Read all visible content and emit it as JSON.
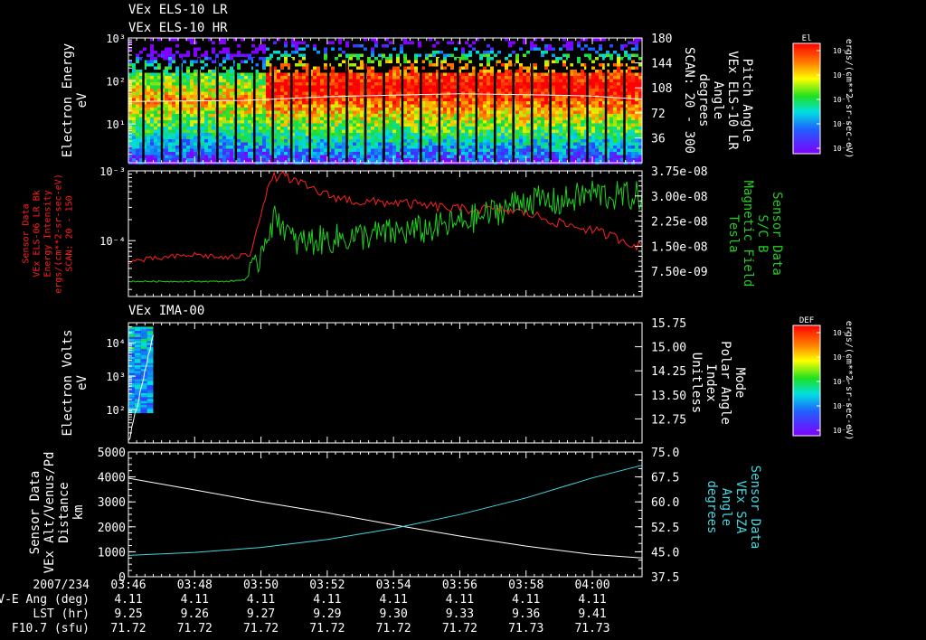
{
  "title_lines": [
    "VEx ELS-10 LR",
    "VEx ELS-10 HR"
  ],
  "panel3_title": "VEx IMA-00",
  "colors": {
    "red": "#ff2020",
    "green": "#20d020",
    "cyan": "#40d8e0",
    "white": "#ffffff"
  },
  "time_axis": {
    "start": "03:46",
    "end": "04:01:30",
    "ticks": [
      "03:46",
      "03:48",
      "03:50",
      "03:52",
      "03:54",
      "03:56",
      "03:58",
      "04:00"
    ]
  },
  "chart_data": [
    {
      "type": "heatmap",
      "name": "ELS spectrogram",
      "ylabel": [
        "Electron Energy",
        "eV"
      ],
      "y_scale": "log",
      "y_ticks": [
        {
          "v": 1,
          "label": "10¹"
        },
        {
          "v": 2,
          "label": "10²"
        },
        {
          "v": 3,
          "label": "10³"
        }
      ],
      "ylim_log": [
        0.1,
        3.0
      ],
      "right_ylabel": [
        "Pitch Angle",
        "VEx ELS-10 LR",
        "Angle",
        "degrees",
        "SCAN: 20 - 300"
      ],
      "right_ticks": [
        36,
        72,
        108,
        144,
        180
      ],
      "right_ylim": [
        0,
        180
      ],
      "colorbar": {
        "title": "El",
        "label": "ergs/(cm**2-sr-sec-eV)",
        "ticks": [
          "10⁻⁴",
          "10⁻⁵",
          "10⁻⁶",
          "10⁻⁷",
          "10⁻⁸"
        ]
      },
      "pitch_angle_trace": {
        "time": [
          "03:46",
          "03:49:30",
          "03:50:10",
          "03:52",
          "03:54",
          "03:56",
          "03:58",
          "04:00",
          "04:01:30"
        ],
        "deg": [
          88,
          90,
          92,
          96,
          98,
          100,
          98,
          95,
          92
        ]
      }
    },
    {
      "type": "line",
      "name": "Sensor Data",
      "left_ylabel": [
        "Sensor Data",
        "VEx ELS-06 LR Bk",
        "Energy Intensity",
        "ergs/(cm**2-sr-sec-eV)",
        "SCAN: 20 - 150"
      ],
      "left_ticks": [
        {
          "v": -4,
          "label": "10⁻⁴"
        },
        {
          "v": -3,
          "label": "10⁻³"
        }
      ],
      "left_ylim_log": [
        -4.8,
        -3.0
      ],
      "right_ylabel": [
        "Sensor Data",
        "S/C B",
        "Magnetic Field",
        "Tesla"
      ],
      "right_ticks": [
        "7.50e-09",
        "1.50e-08",
        "2.25e-08",
        "3.00e-08",
        "3.75e-08"
      ],
      "right_ylim": [
        0,
        3.75e-08
      ],
      "series": [
        {
          "name": "",
          "color": "#ff2020",
          "time": [
            "03:46",
            "03:47",
            "03:48",
            "03:49",
            "03:49:40",
            "03:50",
            "03:50:20",
            "03:50:40",
            "03:51",
            "03:52",
            "03:53",
            "03:54",
            "03:55",
            "03:56",
            "03:57",
            "03:58",
            "03:59",
            "04:00",
            "04:01",
            "04:01:30"
          ],
          "log_intensity": [
            -4.3,
            -4.25,
            -4.2,
            -4.25,
            -4.2,
            -3.6,
            -3.1,
            -3.05,
            -3.15,
            -3.35,
            -3.45,
            -3.45,
            -3.5,
            -3.55,
            -3.55,
            -3.6,
            -3.75,
            -3.85,
            -4.0,
            -4.1
          ]
        },
        {
          "name": "",
          "color": "#20d020",
          "time": [
            "03:46",
            "03:47",
            "03:48",
            "03:49",
            "03:49:30",
            "03:49:50",
            "03:50:10",
            "03:50:30",
            "03:51",
            "03:52",
            "03:53",
            "03:54",
            "03:55",
            "03:56",
            "03:57",
            "03:58",
            "03:59",
            "04:00",
            "04:00:30",
            "04:01:30"
          ],
          "tesla": [
            4.5e-09,
            4.5e-09,
            4.5e-09,
            4.5e-09,
            5e-09,
            8e-09,
            1.9e-08,
            2.4e-08,
            1.6e-08,
            1.7e-08,
            1.8e-08,
            1.9e-08,
            2e-08,
            2.2e-08,
            2.5e-08,
            2.9e-08,
            2.8e-08,
            3.1e-08,
            3e-08,
            3e-08
          ]
        }
      ]
    },
    {
      "type": "heatmap",
      "name": "IMA spectrogram",
      "ylabel": [
        "Electron Volts",
        "eV"
      ],
      "y_ticks": [
        {
          "v": 2,
          "label": "10²"
        },
        {
          "v": 3,
          "label": "10³"
        },
        {
          "v": 4,
          "label": "10⁴"
        }
      ],
      "ylim_log": [
        1.0,
        4.6
      ],
      "right_ylabel": [
        "Mode",
        "Polar Angle",
        "Index",
        "Unitless"
      ],
      "right_ticks": [
        "12.75",
        "13.50",
        "14.25",
        "15.00",
        "15.75"
      ],
      "right_ylim": [
        12.0,
        15.75
      ],
      "data_time_range": [
        "03:46",
        "03:46:45"
      ],
      "colorbar": {
        "title": "DEF",
        "label": "ergs/(cm**2-sr-sec-eV)",
        "ticks": [
          "10⁻⁴",
          "10⁻⁵",
          "10⁻⁶",
          "10⁻⁷",
          "10⁻⁸"
        ]
      }
    },
    {
      "type": "line",
      "name": "Distance and SZA",
      "left_ylabel": [
        "Sensor Data",
        "VEx Alt/Venus/Pd",
        "Distance",
        "km"
      ],
      "left_ticks": [
        "0",
        "1000",
        "2000",
        "3000",
        "4000",
        "5000"
      ],
      "left_ylim": [
        0,
        5000
      ],
      "right_ylabel": [
        "Sensor Data",
        "VEx SZA",
        "Angle",
        "degrees"
      ],
      "right_ticks": [
        "37.5",
        "45.0",
        "52.5",
        "60.0",
        "67.5",
        "75.0"
      ],
      "right_ylim": [
        37.5,
        75.0
      ],
      "series": [
        {
          "name": "",
          "color": "#ffffff",
          "time": [
            "03:46",
            "03:48",
            "03:50",
            "03:52",
            "03:54",
            "03:56",
            "03:58",
            "04:00",
            "04:01:30"
          ],
          "distance_km": [
            3950,
            3480,
            3000,
            2560,
            2080,
            1630,
            1230,
            890,
            750
          ]
        },
        {
          "name": "",
          "color": "#40d8e0",
          "time": [
            "03:46",
            "03:48",
            "03:50",
            "03:52",
            "03:54",
            "03:56",
            "03:58",
            "04:00",
            "04:01:30"
          ],
          "sza_deg": [
            43.9,
            44.8,
            46.3,
            48.7,
            52.0,
            56.2,
            61.2,
            67.2,
            71.0
          ]
        }
      ]
    }
  ],
  "ephemeris": {
    "date": "2007/234",
    "rows": [
      {
        "label": "V-E Ang (deg)",
        "values": [
          "4.11",
          "4.11",
          "4.11",
          "4.11",
          "4.11",
          "4.11",
          "4.11",
          "4.11"
        ]
      },
      {
        "label": "LST (hr)",
        "values": [
          "9.25",
          "9.26",
          "9.27",
          "9.29",
          "9.30",
          "9.33",
          "9.36",
          "9.41"
        ]
      },
      {
        "label": "F10.7 (sfu)",
        "values": [
          "71.72",
          "71.72",
          "71.72",
          "71.72",
          "71.72",
          "71.72",
          "71.73",
          "71.73"
        ]
      }
    ]
  }
}
